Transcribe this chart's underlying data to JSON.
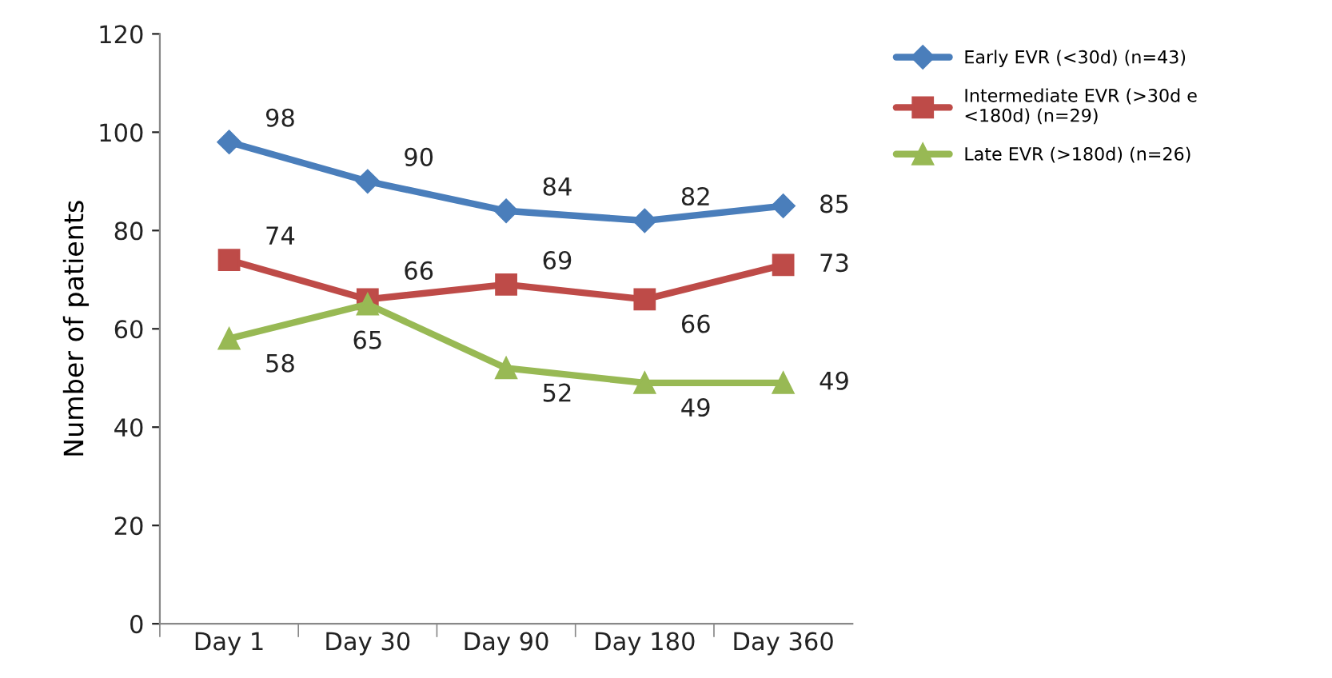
{
  "chart_data": {
    "type": "line",
    "ylabel": "Number of patients",
    "categories": [
      "Day 1",
      "Day 30",
      "Day 90",
      "Day 180",
      "Day 360"
    ],
    "series": [
      {
        "name": "Early EVR (<30d) (n=43)",
        "color": "#4a7ebb",
        "marker": "diamond",
        "values": [
          98,
          90,
          84,
          82,
          85
        ]
      },
      {
        "name": "Intermediate EVR (>30d e <180d) (n=29)",
        "color": "#be4b48",
        "marker": "square",
        "values": [
          74,
          66,
          69,
          66,
          73
        ]
      },
      {
        "name": "Late EVR (>180d) (n=26)",
        "color": "#98b954",
        "marker": "triangle",
        "values": [
          58,
          65,
          52,
          49,
          49
        ]
      }
    ],
    "ylim": [
      0,
      120
    ],
    "yticks": [
      0,
      20,
      40,
      60,
      80,
      100,
      120
    ],
    "data_labels": true,
    "grid": false,
    "legend": "top right",
    "line_style": "solid"
  }
}
